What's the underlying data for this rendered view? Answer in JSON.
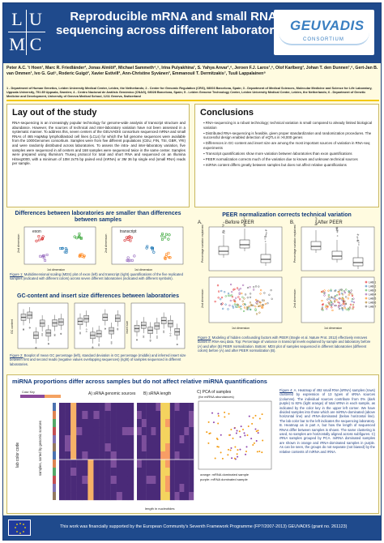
{
  "header": {
    "logo_letters": [
      "L",
      "U",
      "M",
      "C"
    ],
    "title_line1": "Reproducible mRNA and small RNA",
    "title_line2": "sequencing across different laboratories",
    "consortium_logo": "GEUVADIS",
    "consortium_sub": "CONSORTIUM"
  },
  "authors": "Peter A.C. 't Hoen¹, Marc R. Friedländer², Jonas Almlöf³, Michael Sammeth⁴,⁵, Irina Pulyakhina¹, S. Yahya Anvar¹,⁶, Jeroen F.J. Laros¹,⁶, Olof Karlberg³, Johan T. den Dunnen¹,⁶, Gert-Jan B. van Ommen¹, Ivo G. Gut⁵, Roderic Guigó², Xavier Estivill², Ann-Christine Syvänen³, Emmanouil T. Dermitzakis⁷, Tuuli Lappalainen⁸",
  "affiliations": "1 - Department of Human Genetics, Leiden University Medical Center, Leiden, the Netherlands; 2 - Center for Genomic Regulation (CRG), 08003 Barcelona, Spain; 3 - Department of Medical Sciences, Molecular Medicine and Science for Life Laboratory, Uppsala University, 751 85 Uppsala, Sweden; 4 - Centro Nacional de Análisis Genómico (CNAG), 08028 Barcelona, Spain; 5 - Leiden Genome Technology Center, Leiden University Medical Center, Leiden, the Netherlands; 6 - Department of Genetic Medicine and Development, University of Geneva Medical School, 1211 Geneva, Switzerland",
  "layout_section": {
    "title": "Lay out of the study",
    "text": "RNA-sequencing is an increasingly popular technology for genome-wide analysis of transcript structure and abundance. However, the sources of technical and inter-laboratory variation have not been assessed in a systematic manner. To address this, seven centers of the GEUVADIS consortium sequenced mRNA and small RNAs of 465 HapMap lymphoblastoid cell lines (LCLs) for which the full genome sequences were available from the 1000Genomes consortium. Samples were from five different populations (CEU, FIN, TSI, GBR, YRI) and were randomly distributed across laboratories. To assess the intra- and inter-laboratory variation, five samples were sequenced in all centers and 168 samples were sequenced twice in the same center. Samples were prepared using Illumina's Truseq protocol for total and short RNA and sequenced on an Illumina HiSeq2000, with a minimum of 10M 2x75 bp paired end (mRNA) or 3M 36 bp single end (small RNA) reads per sample."
  },
  "conclusions": {
    "title": "Conclusions",
    "items": [
      "RNA-sequencing is a robust technology; technical variation is small compared to already limited biological variation",
      "Distributed RNA-sequencing is feasible, given proper standardization and randomization procedures. The successful design enabled detection of eQTLs in >8,000 genes",
      "Differences in GC-content and insert size are among the most important sources of variation in RNA-seq experiments",
      "Transcript quantifications show more variation between laboratories than exon quantifications",
      "PEER normalization corrects much of the variation due to known and unknown technical sources",
      "miRNA content differs greatly between samples but does not affect relative quantifications"
    ]
  },
  "fig1": {
    "title": "Differences between laboratories are smaller than differences between samples",
    "panel_a": "exon",
    "panel_b": "transcript",
    "xlabel": "1st dimension",
    "ylabel": "2nd dimension",
    "caption_label": "Figure 1:",
    "caption": "Multidimensional scaling (MDS) plot of exon (left) and transcript (right) quantifications of the five replicated samples (indicated with different colors) across seven different laboratories (indicated with different symbols)."
  },
  "fig2": {
    "title": "GC-content and insert size differences between laboratories",
    "ylabel_left": "GC content",
    "ylabel_right": "insert size",
    "caption_label": "Figure 2:",
    "caption": "Boxplot of mean GC percentage (left), standard deviation in GC percentage (middle) and inferred insert size between first and second reads (negative values overlapping sequences) (right) of samples sequenced in different laboratories."
  },
  "fig3": {
    "title": "PEER normalization corrects technical variation",
    "panel_a": "A.",
    "panel_b": "B.",
    "before": "Before PEER",
    "after": "After PEER",
    "ylabel": "Percentage variation explained",
    "xlabel": "1st dimension",
    "ylabel2": "2nd dimension",
    "legend": [
      "LAB 1",
      "LAB 2",
      "LAB 3",
      "LAB 4",
      "LAB 5",
      "LAB 6",
      "LAB 7"
    ],
    "caption_label": "Figure 3:",
    "caption": "Modeling of hidden confounding factors with PEER (Stegle et al. Nature Prot. 2012) effectively removes biases in RNA-seq data. Top: Percentage of variance in transcript levels explained by sample and laboratory before (A) and after (B) PEER normalization. Bottom: MDS plot of samples sequenced in different laboratories (different colors) before (A) and after PEER normalization (B)."
  },
  "fig4": {
    "title": "miRNA proportions differ across samples but do not affect relative miRNA quantifications",
    "panel_a": "A) sRNA genomic sources",
    "panel_b": "B) sRNA length",
    "panel_c": "C) PCA of samples",
    "panel_c_sub": "(for miRNA abundances)",
    "ylabel": "lab color code",
    "ylabel2": "samples, sorted by genomic sources",
    "xlabel": "length in nucleotides",
    "legend_a": "Color Key",
    "legend_orange": "orange: mRNA dominated sample",
    "legend_purple": "purple: mRNA dominated sample",
    "caption_label": "Figure 4:",
    "caption": "A. Heatmap of 492 small RNA (sRNA) samples (rows) clustered by expression of 13 types of sRNA sources (columns). The individual sources contribute from 0% (dark purple) to 82% (light orange) of total sRNA in each sample, as indicated by the color key in the upper left corner. We have divided samples into those which are miRNA-dominated (above horizontal line) and rRNA-dominated (below horizontal line). The lab color bar to the left indicates the sequencing laboratory. B. Heatmap as in part A, but how the length of sequenced RNAs differ between samples is shown. The same clustering is used, so samples are horizontally aligned across subfigures. C) rRNA samples grouped by PCA. miRNA dominated samples are shown in orange and rRNA-dominated samples in purple. As can be seen, the groups do not separate (not biased) by the relative contents of miRNA and rRNA."
  },
  "footer": {
    "text": "This work was financially supported by the European Community's Seventh Framework Programme (FP7/2007-2013) GEUVADIS (grant no. 261123)"
  },
  "chart_data": [
    {
      "type": "scatter",
      "title": "exon",
      "xlabel": "1st dimension",
      "ylabel": "2nd dimension"
    },
    {
      "type": "scatter",
      "title": "transcript",
      "xlabel": "1st dimension",
      "ylabel": "2nd dimension"
    },
    {
      "type": "bar",
      "title": "Before PEER",
      "ylabel": "Percentage variation explained",
      "ylim": [
        0,
        100
      ]
    },
    {
      "type": "bar",
      "title": "After PEER",
      "ylabel": "Percentage variation explained",
      "ylim": [
        0,
        100
      ]
    }
  ]
}
